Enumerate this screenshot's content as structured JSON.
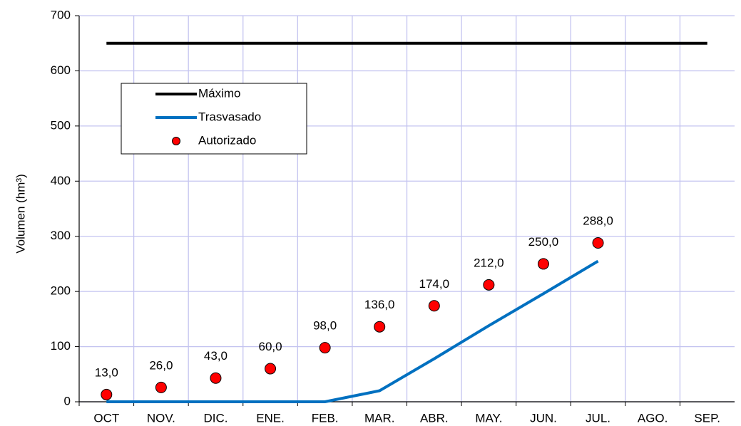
{
  "chart_data": {
    "type": "line",
    "y_label": "Volumen (hm³)",
    "categories": [
      "OCT",
      "NOV.",
      "DIC.",
      "ENE.",
      "FEB.",
      "MAR.",
      "ABR.",
      "MAY.",
      "JUN.",
      "JUL.",
      "AGO.",
      "SEP."
    ],
    "series": [
      {
        "name": "Máximo",
        "color": "#000000",
        "mode": "line",
        "values": [
          650,
          650,
          650,
          650,
          650,
          650,
          650,
          650,
          650,
          650,
          650,
          650
        ]
      },
      {
        "name": "Trasvasado",
        "color": "#0070c0",
        "mode": "line",
        "values": [
          0,
          0,
          0,
          0,
          0,
          20,
          78,
          138,
          196,
          255,
          null,
          null
        ]
      },
      {
        "name": "Autorizado",
        "color": "#ff0000",
        "mode": "marker",
        "values": [
          13,
          26,
          43,
          60,
          98,
          136,
          174,
          212,
          250,
          288,
          null,
          null
        ],
        "value_labels": [
          "13,0",
          "26,0",
          "43,0",
          "60,0",
          "98,0",
          "136,0",
          "174,0",
          "212,0",
          "250,0",
          "288,0",
          null,
          null
        ]
      }
    ],
    "ylim": [
      0,
      700
    ],
    "yticks": [
      0,
      100,
      200,
      300,
      400,
      500,
      600,
      700
    ],
    "grid": true
  }
}
